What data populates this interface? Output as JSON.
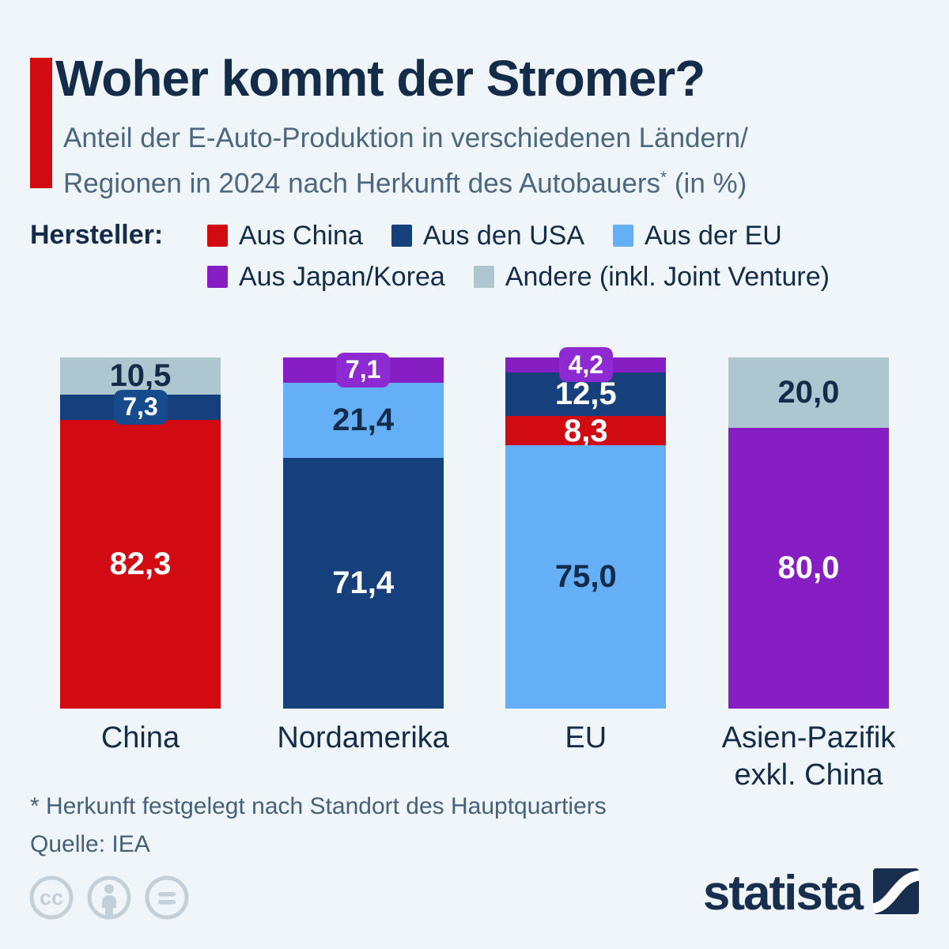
{
  "page": {
    "background": "#f0f5f9"
  },
  "header": {
    "title": "Woher kommt der Stromer?",
    "title_color": "#132c49",
    "subtitle_line1": "Anteil der E-Auto-Produktion in verschiedenen Ländern/",
    "subtitle_line2_pre": "Regionen in 2024 nach Herkunft des Autobauers",
    "subtitle_asterisk": "*",
    "subtitle_line2_post": " (in %)",
    "subtitle_color": "#4b6781",
    "accent_color": "#d20b12"
  },
  "legend": {
    "label": "Hersteller:",
    "rows": [
      [
        {
          "label": "Aus China",
          "color_key": "red"
        },
        {
          "label": "Aus den USA",
          "color_key": "navy"
        },
        {
          "label": "Aus der EU",
          "color_key": "light_blue"
        }
      ],
      [
        {
          "label": "Aus Japan/Korea",
          "color_key": "purple"
        },
        {
          "label": "Andere (inkl. Joint Venture)",
          "color_key": "gray"
        }
      ]
    ]
  },
  "chart_data": {
    "type": "bar",
    "stacked": true,
    "unit": "%",
    "title": "Anteil der E-Auto-Produktion in verschiedenen Ländern/Regionen in 2024 nach Herkunft des Autobauers (in %)",
    "value_range": [
      0,
      100
    ],
    "grid": false,
    "legend_position": "top",
    "value_labels": "on-segments",
    "categories": [
      "China",
      "Nordamerika",
      "EU",
      "Asien-Pazifik exkl. China"
    ],
    "series": [
      {
        "name": "Aus China",
        "values": [
          82.3,
          null,
          8.3,
          null
        ]
      },
      {
        "name": "Aus den USA",
        "values": [
          7.3,
          71.4,
          12.5,
          null
        ]
      },
      {
        "name": "Aus der EU",
        "values": [
          null,
          21.4,
          75.0,
          null
        ]
      },
      {
        "name": "Aus Japan/Korea",
        "values": [
          null,
          7.1,
          4.2,
          80.0
        ]
      },
      {
        "name": "Andere (inkl. Joint Venture)",
        "values": [
          10.5,
          null,
          null,
          20.0
        ]
      }
    ],
    "palette": {
      "red": "#d20b12",
      "navy": "#16407c",
      "light_blue": "#65aff6",
      "purple": "#871ec4",
      "gray": "#aec6cf",
      "badge_navy": "#164b8d",
      "badge_purple": "#8e2ad2",
      "dark_text": "#132c49",
      "white_text": "#ffffff"
    },
    "bars": [
      {
        "category": "China",
        "label_lines": [
          "China"
        ],
        "segments": [
          {
            "series": "Andere (inkl. Joint Venture)",
            "value": 10.5,
            "display": "10,5",
            "color": "gray",
            "text": "dark"
          },
          {
            "series": "Aus den USA",
            "value": 7.3,
            "display": "7,3",
            "color": "navy",
            "text": "white",
            "badge": "badge_navy"
          },
          {
            "series": "Aus China",
            "value": 82.3,
            "display": "82,3",
            "color": "red",
            "text": "white"
          }
        ]
      },
      {
        "category": "Nordamerika",
        "label_lines": [
          "Nordamerika"
        ],
        "segments": [
          {
            "series": "Aus Japan/Korea",
            "value": 7.1,
            "display": "7,1",
            "color": "purple",
            "text": "white",
            "badge": "badge_purple"
          },
          {
            "series": "Aus der EU",
            "value": 21.4,
            "display": "21,4",
            "color": "light_blue",
            "text": "dark"
          },
          {
            "series": "Aus den USA",
            "value": 71.4,
            "display": "71,4",
            "color": "navy",
            "text": "white"
          }
        ]
      },
      {
        "category": "EU",
        "label_lines": [
          "EU"
        ],
        "segments": [
          {
            "series": "Aus Japan/Korea",
            "value": 4.2,
            "display": "4,2",
            "color": "purple",
            "text": "white",
            "badge": "badge_purple"
          },
          {
            "series": "Aus den USA",
            "value": 12.5,
            "display": "12,5",
            "color": "navy",
            "text": "white"
          },
          {
            "series": "Aus China",
            "value": 8.3,
            "display": "8,3",
            "color": "red",
            "text": "white"
          },
          {
            "series": "Aus der EU",
            "value": 75.0,
            "display": "75,0",
            "color": "light_blue",
            "text": "dark"
          }
        ]
      },
      {
        "category": "Asien-Pazifik exkl. China",
        "label_lines": [
          "Asien-Pazifik",
          "exkl. China"
        ],
        "segments": [
          {
            "series": "Andere (inkl. Joint Venture)",
            "value": 20.0,
            "display": "20,0",
            "color": "gray",
            "text": "dark"
          },
          {
            "series": "Aus Japan/Korea",
            "value": 80.0,
            "display": "80,0",
            "color": "purple",
            "text": "white"
          }
        ]
      }
    ]
  },
  "footer": {
    "footnote": "* Herkunft festgelegt nach Standort des Hauptquartiers",
    "source": "Quelle: IEA",
    "text_color": "#45607b",
    "brand": "statista",
    "brand_color": "#182e4e",
    "license_icon_color": "#c3cfd9",
    "license_icons": [
      "cc-icon",
      "cc-by-icon",
      "cc-nd-icon"
    ]
  }
}
